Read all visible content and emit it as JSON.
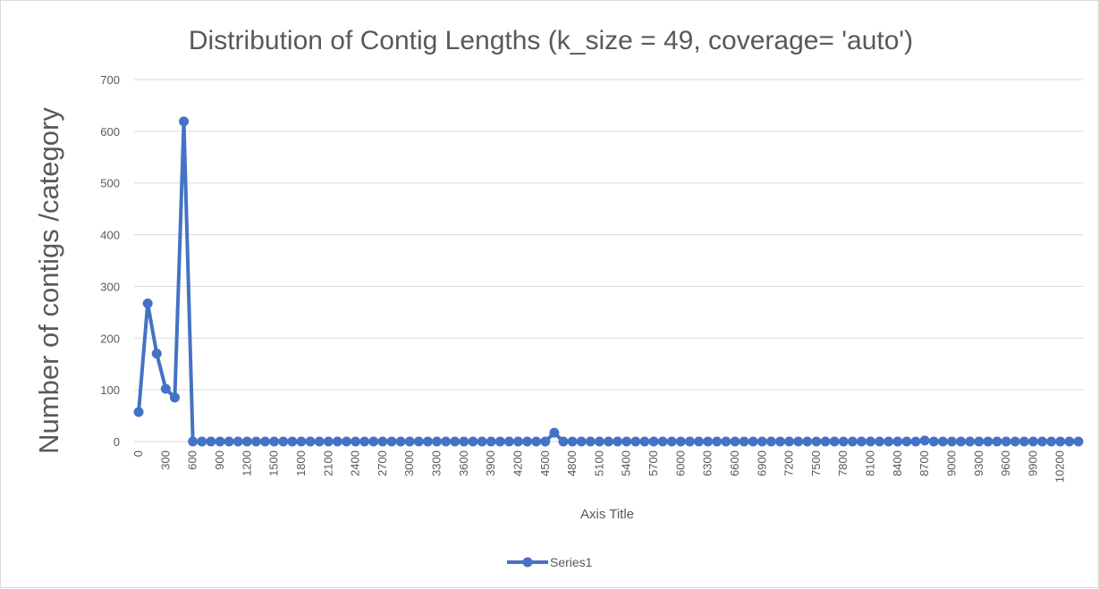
{
  "chart_data": {
    "type": "line",
    "title": "Distribution of Contig Lengths (k_size = 49, coverage= 'auto')",
    "xlabel": "Axis Title",
    "ylabel": "Number of contigs /category",
    "ylim": [
      0,
      700
    ],
    "yticks": [
      "0",
      "100",
      "200",
      "300",
      "400",
      "500",
      "600",
      "700"
    ],
    "grid": true,
    "legend_position": "bottom",
    "xtick_labels": [
      "0",
      "300",
      "600",
      "900",
      "1200",
      "1500",
      "1800",
      "2100",
      "2400",
      "2700",
      "3000",
      "3300",
      "3600",
      "3900",
      "4200",
      "4500",
      "4800",
      "5100",
      "5400",
      "5700",
      "6000",
      "6300",
      "6600",
      "6900",
      "7200",
      "7500",
      "7800",
      "8100",
      "8400",
      "8700",
      "9000",
      "9300",
      "9600",
      "9900",
      "10200"
    ],
    "categories": [
      0,
      100,
      200,
      300,
      400,
      500,
      600,
      700,
      800,
      900,
      1000,
      1100,
      1200,
      1300,
      1400,
      1500,
      1600,
      1700,
      1800,
      1900,
      2000,
      2100,
      2200,
      2300,
      2400,
      2500,
      2600,
      2700,
      2800,
      2900,
      3000,
      3100,
      3200,
      3300,
      3400,
      3500,
      3600,
      3700,
      3800,
      3900,
      4000,
      4100,
      4200,
      4300,
      4400,
      4500,
      4600,
      4700,
      4800,
      4900,
      5000,
      5100,
      5200,
      5300,
      5400,
      5500,
      5600,
      5700,
      5800,
      5900,
      6000,
      6100,
      6200,
      6300,
      6400,
      6500,
      6600,
      6700,
      6800,
      6900,
      7000,
      7100,
      7200,
      7300,
      7400,
      7500,
      7600,
      7700,
      7800,
      7900,
      8000,
      8100,
      8200,
      8300,
      8400,
      8500,
      8600,
      8700,
      8800,
      8900,
      9000,
      9100,
      9200,
      9300,
      9400,
      9500,
      9600,
      9700,
      9800,
      9900,
      10000,
      10100,
      10200,
      10300,
      10400
    ],
    "series": [
      {
        "name": "Series1",
        "color": "#4472c4",
        "values": [
          57,
          267,
          170,
          102,
          85,
          619,
          0,
          0,
          0,
          0,
          0,
          0,
          0,
          0,
          0,
          0,
          0,
          0,
          0,
          0,
          0,
          0,
          0,
          0,
          0,
          0,
          0,
          0,
          0,
          0,
          0,
          0,
          0,
          0,
          0,
          0,
          0,
          0,
          0,
          0,
          0,
          0,
          0,
          0,
          0,
          0,
          17,
          0,
          0,
          0,
          0,
          0,
          0,
          0,
          0,
          0,
          0,
          0,
          0,
          0,
          0,
          0,
          0,
          0,
          0,
          0,
          0,
          0,
          0,
          0,
          0,
          0,
          0,
          0,
          0,
          0,
          0,
          0,
          0,
          0,
          0,
          0,
          0,
          0,
          0,
          0,
          0,
          2,
          0,
          0,
          0,
          0,
          0,
          0,
          0,
          0,
          0,
          0,
          0,
          0,
          0,
          0,
          0,
          0,
          0
        ]
      }
    ]
  }
}
